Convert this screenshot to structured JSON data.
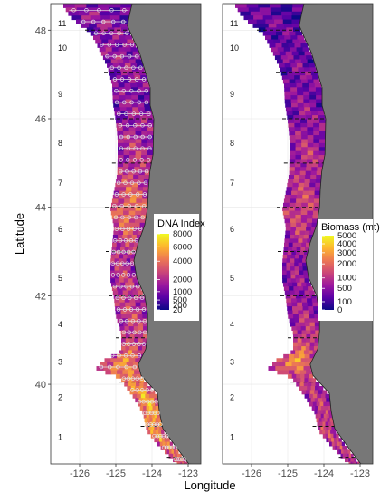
{
  "map": {
    "x_axis_title": "Longitude",
    "y_axis_title": "Latitude",
    "lon_range": [
      -126.8,
      -122.65
    ],
    "lat_range": [
      38.2,
      48.6
    ],
    "lon_ticks": [
      -126,
      -125,
      -124,
      -123
    ],
    "lon_tick_labels": [
      "-126",
      "-125",
      "-124",
      "-123"
    ],
    "lat_ticks": [
      40,
      42,
      44,
      46,
      48
    ],
    "lat_tick_labels": [
      "40",
      "42",
      "44",
      "46",
      "48"
    ],
    "grid": true,
    "land_color": "#777777",
    "panel_background": "#ffffff",
    "region_labels": [
      "1",
      "2",
      "3",
      "4",
      "5",
      "6",
      "7",
      "8",
      "9",
      "10",
      "11"
    ],
    "region_label_latitudes": [
      38.8,
      39.7,
      40.5,
      41.35,
      42.4,
      43.5,
      44.55,
      45.45,
      46.55,
      47.6,
      48.15
    ],
    "region_boundary_latitudes": [
      38.35,
      39.05,
      40.05,
      41.05,
      42.0,
      43.0,
      44.0,
      45.0,
      46.0,
      47.05,
      48.0
    ],
    "panels": [
      {
        "legend_title": "DNA Index",
        "legend_tick_labels": [
          "8000",
          "6000",
          "4000",
          "2000",
          "1000",
          "500",
          "200",
          "20"
        ],
        "legend_tick_fractions": [
          1.0,
          0.83,
          0.64,
          0.4,
          0.24,
          0.13,
          0.06,
          0.0
        ],
        "show_stations": true
      },
      {
        "legend_title": "Biomass (mt)",
        "legend_tick_labels": [
          "5000",
          "4000",
          "3000",
          "2000",
          "1000",
          "500",
          "100",
          "0"
        ],
        "legend_tick_fractions": [
          1.0,
          0.89,
          0.77,
          0.62,
          0.43,
          0.29,
          0.11,
          0.0
        ],
        "show_stations": false
      }
    ],
    "colormap": [
      "#0d0887",
      "#5c01a6",
      "#9c179e",
      "#cc4778",
      "#ed7953",
      "#fdb42f",
      "#f0f921"
    ],
    "station_color": "#e6e6e6"
  }
}
